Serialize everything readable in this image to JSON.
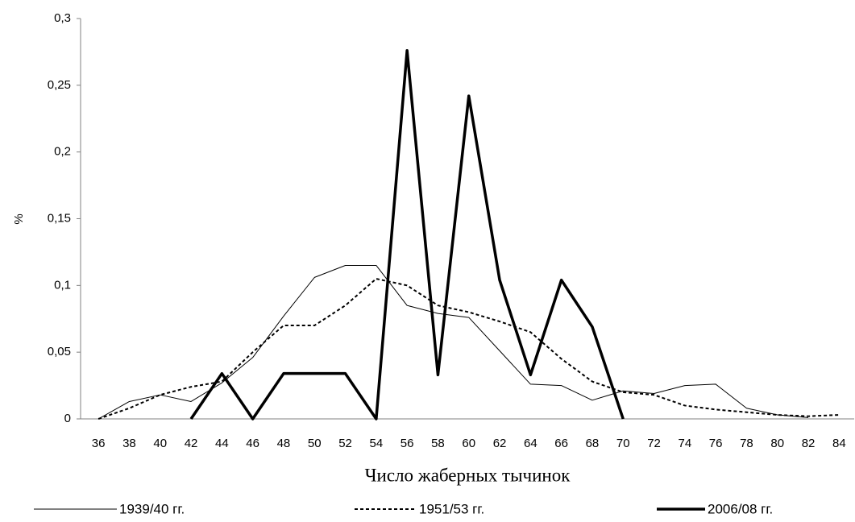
{
  "chart_data": {
    "type": "line",
    "ylabel": "%",
    "xlabel": "Число жаберных тычинок",
    "categories": [
      "36",
      "38",
      "40",
      "42",
      "44",
      "46",
      "48",
      "50",
      "52",
      "54",
      "56",
      "58",
      "60",
      "62",
      "64",
      "66",
      "68",
      "70",
      "72",
      "74",
      "76",
      "78",
      "80",
      "82",
      "84"
    ],
    "ylim": [
      0,
      0.3
    ],
    "yticks": [
      0,
      {
        "value": 0.05,
        "label": "0,05"
      },
      {
        "value": 0.1,
        "label": "0,1"
      },
      {
        "value": 0.15,
        "label": "0,15"
      },
      {
        "value": 0.2,
        "label": "0,2"
      },
      {
        "value": 0.25,
        "label": "0,25"
      },
      {
        "value": 0.3,
        "label": "0,3"
      }
    ],
    "series": [
      {
        "name": "1939/40 гг.",
        "color": "#000000",
        "width": 1,
        "dash": "none",
        "values": [
          0,
          0.013,
          0.018,
          0.013,
          0.027,
          0.046,
          0.077,
          0.106,
          0.115,
          0.115,
          0.085,
          0.079,
          0.076,
          0.051,
          0.026,
          0.025,
          0.014,
          0.021,
          0.019,
          0.025,
          0.026,
          0.008,
          0.003,
          0.001,
          null
        ]
      },
      {
        "name": "1951/53 гг.",
        "color": "#000000",
        "width": 2,
        "dash": "4 3",
        "values": [
          0,
          0.008,
          0.018,
          0.024,
          0.028,
          0.05,
          0.07,
          0.07,
          0.085,
          0.105,
          0.1,
          0.085,
          0.08,
          0.073,
          0.065,
          0.045,
          0.028,
          0.02,
          0.018,
          0.01,
          0.007,
          0.005,
          0.003,
          0.002,
          0.003
        ]
      },
      {
        "name": "2006/08 гг.",
        "color": "#000000",
        "width": 3.5,
        "dash": "none",
        "values": [
          null,
          null,
          null,
          0,
          0.034,
          0,
          0.034,
          0.034,
          0.034,
          0,
          0.276,
          0.033,
          0.242,
          0.104,
          0.033,
          0.104,
          0.069,
          0,
          null,
          null,
          null,
          null,
          null,
          null,
          null
        ]
      }
    ]
  }
}
